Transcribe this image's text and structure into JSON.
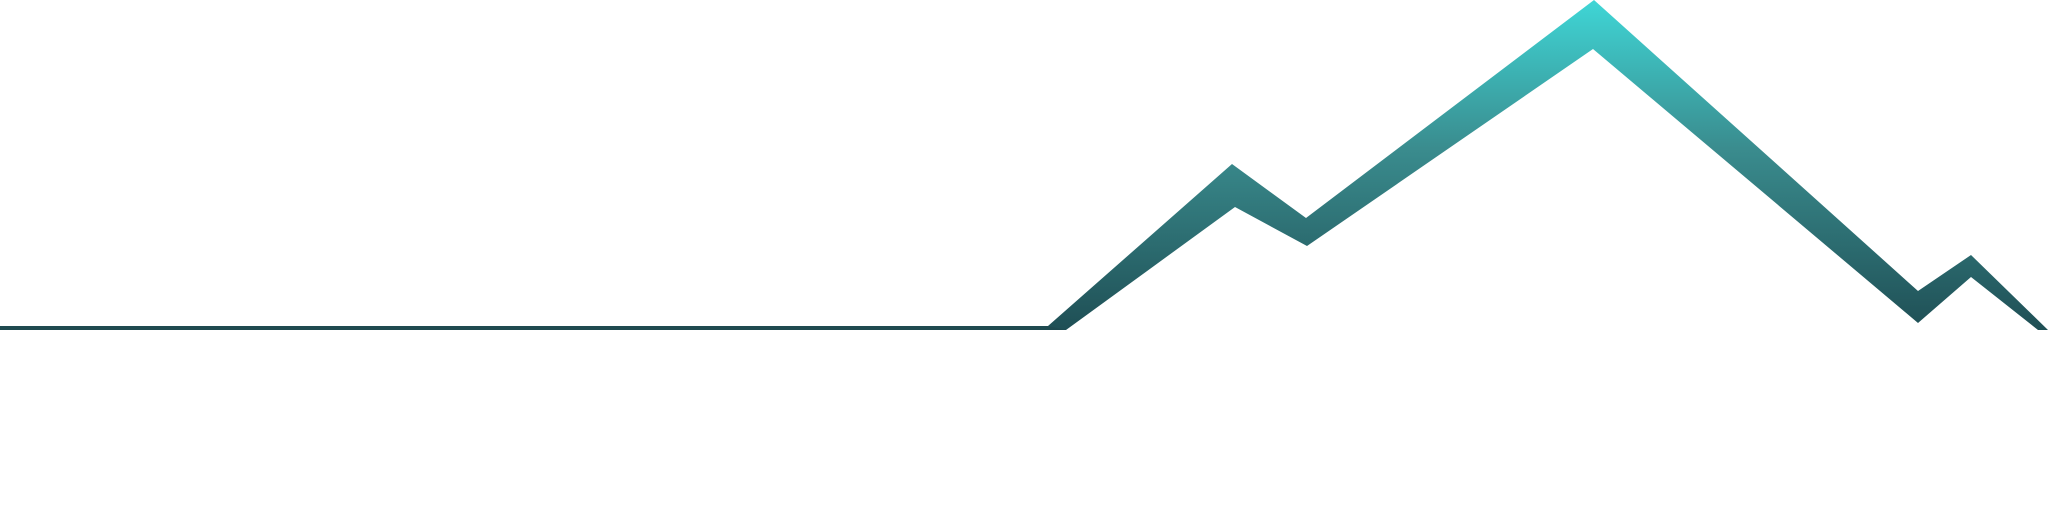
{
  "graphic": {
    "subject": "mountain-range-outline",
    "colors": {
      "peak": "#3fd6d6",
      "mid": "#3a8c8e",
      "base": "#1f4f55",
      "line": "#1f4a50",
      "background": "#ffffff"
    }
  }
}
